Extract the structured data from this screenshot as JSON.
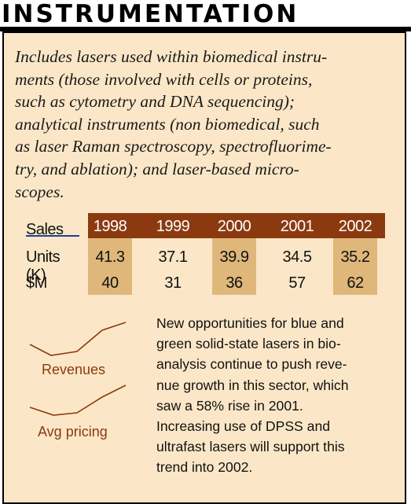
{
  "header": {
    "title": "INSTRUMENTATION"
  },
  "intro": {
    "text": "Includes lasers used within biomedical instruments (those involved with cells or proteins, such as cytometry and DNA sequencing); analytical instruments (non biomedical, such as laser Raman spectroscopy, spectrofluorimetry, and ablation); and laser-based microscopes.",
    "lines": [
      "Includes lasers used within biomedical instru-",
      "ments (those involved with cells or proteins,",
      "such as cytometry and DNA sequencing);",
      "analytical instruments (non biomedical, such",
      "as laser Raman spectroscopy, spectrofluorime-",
      "try, and ablation); and laser-based micro-",
      "scopes."
    ]
  },
  "table": {
    "label": "Sales",
    "years": [
      "1998",
      "1999",
      "2000",
      "2001",
      "2002"
    ],
    "rows": [
      {
        "label": "Units (K)",
        "values": [
          "41.3",
          "37.1",
          "39.9",
          "34.5",
          "35.2"
        ]
      },
      {
        "label": "$M",
        "values": [
          "40",
          "31",
          "36",
          "57",
          "62"
        ]
      }
    ]
  },
  "trends": {
    "revenues_label": "Revenues",
    "pricing_label": "Avg pricing",
    "color": "#8b3a10"
  },
  "colors": {
    "panel": "#fbe7c7",
    "header_bar": "#8b3a10",
    "shade": "#dfb77a"
  },
  "note": {
    "lines": [
      "New opportunities for blue and",
      "green solid-state lasers in bio-",
      "analysis continue to push reve-",
      "nue growth in this sector, which",
      "saw a 58% rise in 2001.",
      "Increasing use of DPSS and",
      "ultrafast lasers will support this",
      "trend into 2002."
    ]
  }
}
